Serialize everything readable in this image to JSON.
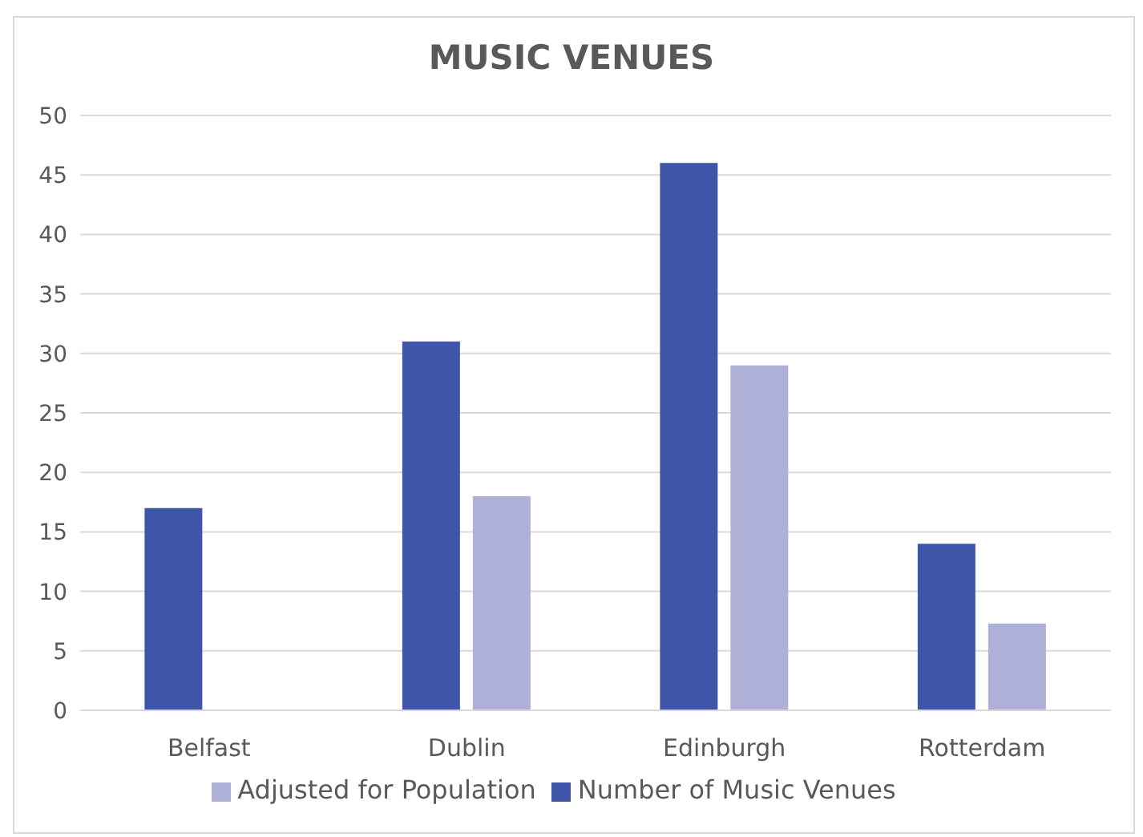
{
  "chart_data": {
    "type": "bar",
    "title": "MUSIC VENUES",
    "categories": [
      "Belfast",
      "Dublin",
      "Edinburgh",
      "Rotterdam"
    ],
    "series": [
      {
        "name": "Number of Music Venues",
        "color": "#3f56a8",
        "values": [
          17,
          31,
          46,
          14
        ]
      },
      {
        "name": "Adjusted for Population",
        "color": "#aeb0d8",
        "values": [
          null,
          18,
          29,
          7.3
        ]
      }
    ],
    "ylim": [
      0,
      50
    ],
    "yticks": [
      0,
      5,
      10,
      15,
      20,
      25,
      30,
      35,
      40,
      45,
      50
    ],
    "grid": "y",
    "legend": "bottom"
  }
}
